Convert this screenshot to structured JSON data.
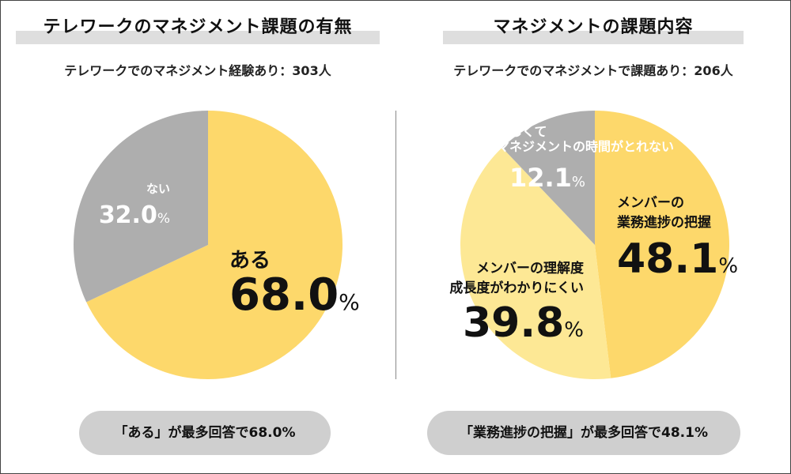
{
  "left_panel": {
    "title": "テレワークのマネジメント課題の有無",
    "subtitle": "テレワークでのマネジメント経験あり：303人",
    "summary": "「ある」が最多回答で68.0%"
  },
  "right_panel": {
    "title": "マネジメントの課題内容",
    "subtitle": "テレワークでのマネジメントで課題あり：206人",
    "summary": "「業務進捗の把握」が最多回答で48.1%"
  },
  "colors": {
    "yellow": "#fdd86b",
    "light_yellow": "#fde895",
    "gray": "#aeaeae",
    "dark_text": "#111111",
    "white_text": "#ffffff"
  },
  "chart_data": [
    {
      "type": "pie",
      "title": "テレワークのマネジメント課題の有無",
      "start": "top, clockwise",
      "slices": [
        {
          "label_lines": [
            "ある"
          ],
          "value": 68.0,
          "display": "68.0",
          "unit": "%",
          "color": "#fdd86b",
          "text_color": "#111111"
        },
        {
          "label_lines": [
            "ない"
          ],
          "value": 32.0,
          "display": "32.0",
          "unit": "%",
          "color": "#aeaeae",
          "text_color": "#ffffff"
        }
      ]
    },
    {
      "type": "pie",
      "title": "マネジメントの課題内容",
      "start": "top, clockwise",
      "slices": [
        {
          "label_lines": [
            "メンバーの",
            "業務進捗の把握"
          ],
          "value": 48.1,
          "display": "48.1",
          "unit": "%",
          "color": "#fdd86b",
          "text_color": "#111111"
        },
        {
          "label_lines": [
            "メンバーの理解度",
            "成長度がわかりにくい"
          ],
          "value": 39.8,
          "display": "39.8",
          "unit": "%",
          "color": "#fde895",
          "text_color": "#111111"
        },
        {
          "label_lines": [
            "忙しくて",
            "マネジメントの時間がとれない"
          ],
          "value": 12.1,
          "display": "12.1",
          "unit": "%",
          "color": "#aeaeae",
          "text_color": "#ffffff"
        }
      ]
    }
  ]
}
